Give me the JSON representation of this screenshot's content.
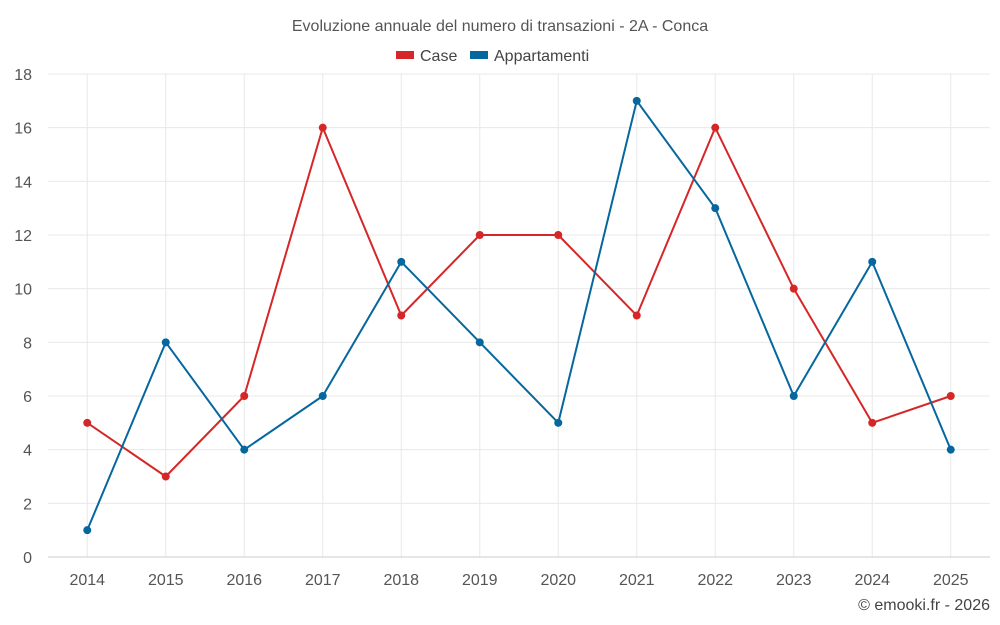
{
  "chart_data": {
    "type": "line",
    "title": "Evoluzione annuale del numero di transazioni - 2A - Conca",
    "xlabel": "",
    "ylabel": "",
    "categories": [
      "2014",
      "2015",
      "2016",
      "2017",
      "2018",
      "2019",
      "2020",
      "2021",
      "2022",
      "2023",
      "2024",
      "2025"
    ],
    "series": [
      {
        "name": "Case",
        "color": "#d62728",
        "values": [
          5,
          3,
          6,
          16,
          9,
          12,
          12,
          9,
          16,
          10,
          5,
          6
        ]
      },
      {
        "name": "Appartamenti",
        "color": "#06679e",
        "values": [
          1,
          8,
          4,
          6,
          11,
          8,
          5,
          17,
          13,
          6,
          11,
          4
        ]
      }
    ],
    "ylim": [
      0,
      18
    ],
    "yticks": [
      "0",
      "2",
      "4",
      "6",
      "8",
      "10",
      "12",
      "14",
      "16",
      "18"
    ],
    "grid": true,
    "legend_position": "top-center"
  },
  "credit": "© emooki.fr - 2026"
}
